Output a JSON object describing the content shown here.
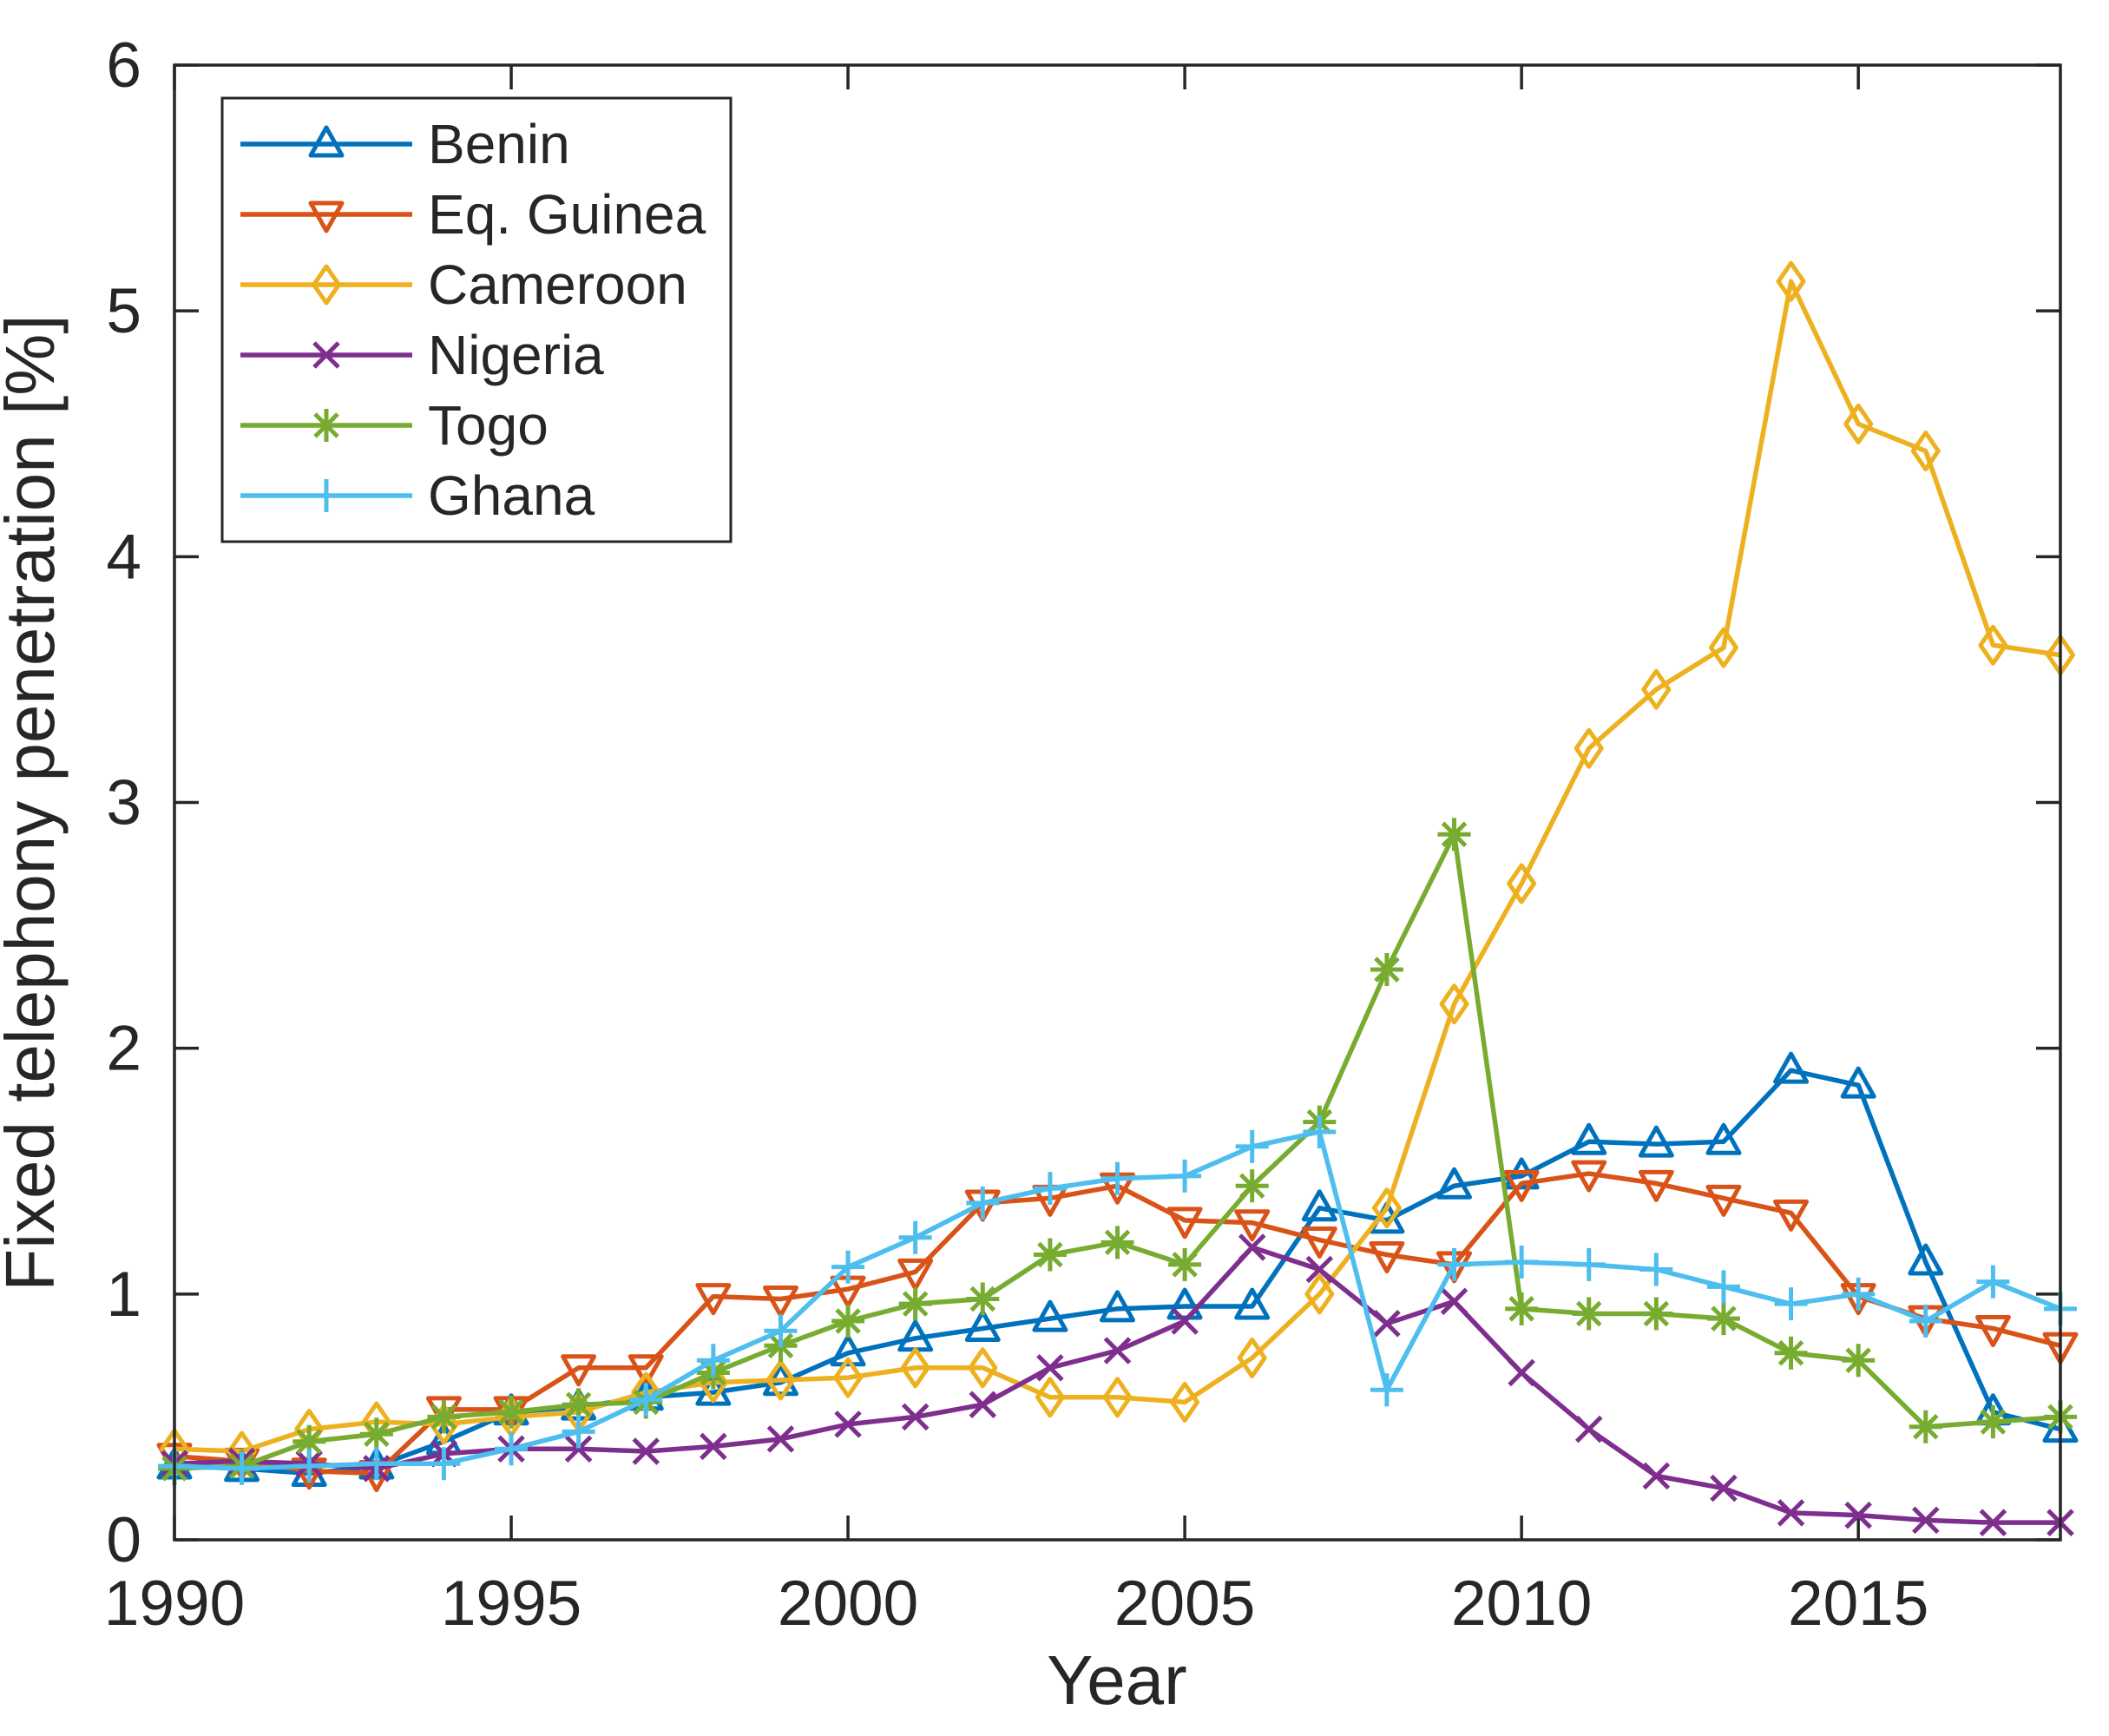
{
  "chart_data": {
    "type": "line",
    "title": "",
    "xlabel": "Year",
    "ylabel": "Fixed telephony penetration [%]",
    "xlim": [
      1990,
      2018
    ],
    "ylim": [
      0,
      6
    ],
    "xticks": [
      1990,
      1995,
      2000,
      2005,
      2010,
      2015
    ],
    "yticks": [
      0,
      1,
      2,
      3,
      4,
      5,
      6
    ],
    "grid": false,
    "legend_position": "top-left",
    "axis_color": "#262626",
    "background_color": "#ffffff",
    "x": [
      1990,
      1991,
      1992,
      1993,
      1994,
      1995,
      1996,
      1997,
      1998,
      1999,
      2000,
      2001,
      2002,
      2003,
      2004,
      2005,
      2006,
      2007,
      2008,
      2009,
      2010,
      2011,
      2012,
      2013,
      2014,
      2015,
      2016,
      2017,
      2018
    ],
    "series": [
      {
        "name": "Benin",
        "color": "#0072BD",
        "marker": "triangle-up",
        "values": [
          0.3,
          0.29,
          0.27,
          0.3,
          0.4,
          0.52,
          0.54,
          0.58,
          0.6,
          0.64,
          0.76,
          0.82,
          0.86,
          0.9,
          0.94,
          0.95,
          0.95,
          1.35,
          1.3,
          1.44,
          1.48,
          1.62,
          1.61,
          1.62,
          1.91,
          1.85,
          1.13,
          0.52,
          0.45
        ]
      },
      {
        "name": "Eq. Guinea",
        "color": "#D95319",
        "marker": "triangle-down",
        "values": [
          0.34,
          0.32,
          0.28,
          0.27,
          0.53,
          0.53,
          0.7,
          0.7,
          0.99,
          0.98,
          1.02,
          1.09,
          1.37,
          1.39,
          1.44,
          1.3,
          1.29,
          1.22,
          1.16,
          1.12,
          1.45,
          1.49,
          1.45,
          1.39,
          1.33,
          0.99,
          0.9,
          0.86,
          0.79
        ]
      },
      {
        "name": "Cameroon",
        "color": "#EDB120",
        "marker": "diamond",
        "values": [
          0.37,
          0.36,
          0.45,
          0.48,
          0.47,
          0.5,
          0.52,
          0.6,
          0.64,
          0.65,
          0.66,
          0.7,
          0.7,
          0.58,
          0.58,
          0.56,
          0.74,
          1.0,
          1.35,
          2.18,
          2.67,
          3.22,
          3.46,
          3.63,
          5.12,
          4.54,
          4.43,
          3.64,
          3.6
        ]
      },
      {
        "name": "Nigeria",
        "color": "#7E2F8E",
        "marker": "x",
        "values": [
          0.31,
          0.32,
          0.31,
          0.29,
          0.35,
          0.37,
          0.37,
          0.36,
          0.38,
          0.41,
          0.47,
          0.5,
          0.55,
          0.7,
          0.77,
          0.89,
          1.19,
          1.1,
          0.88,
          0.97,
          0.68,
          0.45,
          0.26,
          0.21,
          0.11,
          0.1,
          0.08,
          0.07,
          0.07
        ]
      },
      {
        "name": "Togo",
        "color": "#77AC30",
        "marker": "asterisk",
        "values": [
          0.29,
          0.3,
          0.4,
          0.43,
          0.5,
          0.52,
          0.55,
          0.56,
          0.68,
          0.79,
          0.89,
          0.96,
          0.98,
          1.16,
          1.21,
          1.12,
          1.44,
          1.7,
          2.32,
          2.87,
          0.94,
          0.92,
          0.92,
          0.9,
          0.76,
          0.73,
          0.46,
          0.48,
          0.5
        ]
      },
      {
        "name": "Ghana",
        "color": "#4DBEEE",
        "marker": "plus",
        "values": [
          0.3,
          0.29,
          0.3,
          0.31,
          0.31,
          0.37,
          0.44,
          0.57,
          0.73,
          0.85,
          1.11,
          1.23,
          1.37,
          1.43,
          1.47,
          1.48,
          1.6,
          1.66,
          0.61,
          1.12,
          1.13,
          1.12,
          1.1,
          1.03,
          0.96,
          1.0,
          0.89,
          1.05,
          0.94
        ]
      }
    ],
    "legend": {
      "entries": [
        "Benin",
        "Eq. Guinea",
        "Cameroon",
        "Nigeria",
        "Togo",
        "Ghana"
      ]
    }
  }
}
